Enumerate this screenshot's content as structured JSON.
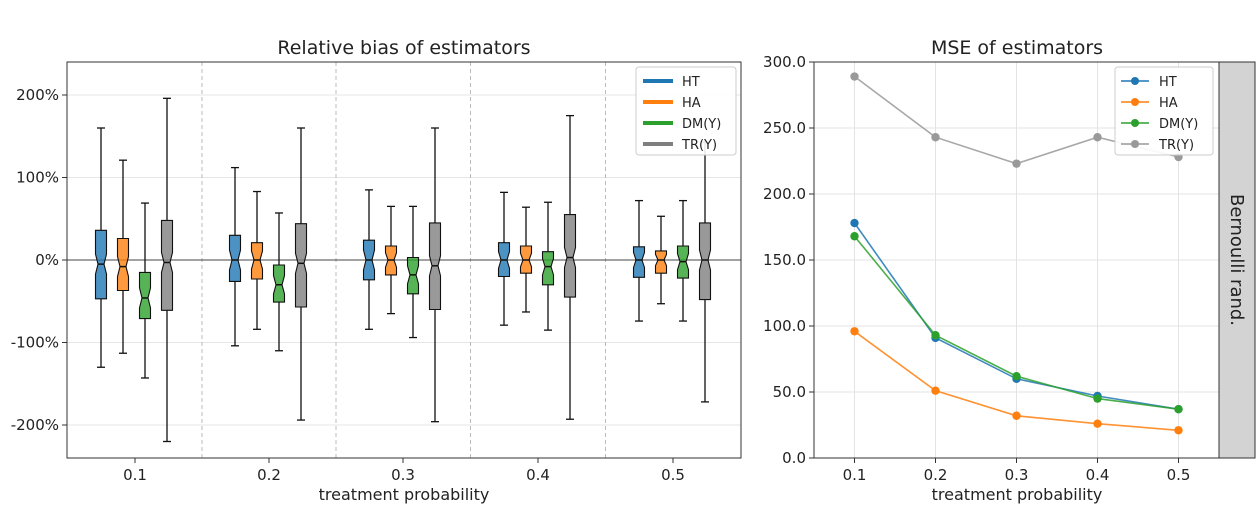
{
  "chart_data": [
    {
      "type": "boxplot",
      "title": "Relative bias of estimators",
      "xlabel": "treatment probability",
      "ylabel": "",
      "categories": [
        "0.1",
        "0.2",
        "0.3",
        "0.4",
        "0.5"
      ],
      "ylim": [
        -240,
        240
      ],
      "yticks": [
        -200,
        -100,
        0,
        100,
        200
      ],
      "ytick_labels": [
        "-200%",
        "-100%",
        "0%",
        "100%",
        "200%"
      ],
      "legend_position": "top-right",
      "reference_line": 0,
      "series": [
        {
          "name": "HT",
          "color": "#1f77b4",
          "boxes": [
            {
              "min": -130,
              "q1": -47,
              "median": -5,
              "q3": 36,
              "max": 160
            },
            {
              "min": -104,
              "q1": -26,
              "median": 0,
              "q3": 30,
              "max": 112
            },
            {
              "min": -84,
              "q1": -24,
              "median": 0,
              "q3": 24,
              "max": 85
            },
            {
              "min": -79,
              "q1": -20,
              "median": 0,
              "q3": 21,
              "max": 82
            },
            {
              "min": -74,
              "q1": -21,
              "median": 0,
              "q3": 16,
              "max": 72
            }
          ]
        },
        {
          "name": "HA",
          "color": "#ff7f0e",
          "boxes": [
            {
              "min": -113,
              "q1": -37,
              "median": -8,
              "q3": 26,
              "max": 121
            },
            {
              "min": -84,
              "q1": -23,
              "median": 0,
              "q3": 21,
              "max": 83
            },
            {
              "min": -65,
              "q1": -18,
              "median": 0,
              "q3": 17,
              "max": 65
            },
            {
              "min": -63,
              "q1": -16,
              "median": 0,
              "q3": 17,
              "max": 64
            },
            {
              "min": -53,
              "q1": -16,
              "median": 0,
              "q3": 11,
              "max": 53
            }
          ]
        },
        {
          "name": "DM(Y)",
          "color": "#2ca02c",
          "boxes": [
            {
              "min": -143,
              "q1": -71,
              "median": -46,
              "q3": -15,
              "max": 69
            },
            {
              "min": -110,
              "q1": -51,
              "median": -30,
              "q3": -6,
              "max": 57
            },
            {
              "min": -94,
              "q1": -41,
              "median": -18,
              "q3": 3,
              "max": 65
            },
            {
              "min": -85,
              "q1": -30,
              "median": -8,
              "q3": 10,
              "max": 70
            },
            {
              "min": -74,
              "q1": -22,
              "median": -2,
              "q3": 17,
              "max": 72
            }
          ]
        },
        {
          "name": "TR(Y)",
          "color": "#7f7f7f",
          "boxes": [
            {
              "min": -220,
              "q1": -61,
              "median": -3,
              "q3": 48,
              "max": 196
            },
            {
              "min": -194,
              "q1": -57,
              "median": -4,
              "q3": 44,
              "max": 160
            },
            {
              "min": -196,
              "q1": -60,
              "median": -7,
              "q3": 45,
              "max": 160
            },
            {
              "min": -193,
              "q1": -45,
              "median": 3,
              "q3": 55,
              "max": 175
            },
            {
              "min": -172,
              "q1": -48,
              "median": 0,
              "q3": 45,
              "max": 143
            }
          ]
        }
      ]
    },
    {
      "type": "line",
      "title": "MSE of estimators",
      "xlabel": "treatment probability",
      "ylabel": "",
      "x": [
        0.1,
        0.2,
        0.3,
        0.4,
        0.5
      ],
      "xtick_labels": [
        "0.1",
        "0.2",
        "0.3",
        "0.4",
        "0.5"
      ],
      "xlim": [
        0.05,
        0.55
      ],
      "ylim": [
        0,
        300
      ],
      "yticks": [
        0,
        50,
        100,
        150,
        200,
        250,
        300
      ],
      "ytick_labels": [
        "0.0",
        "50.0",
        "100.0",
        "150.0",
        "200.0",
        "250.0",
        "300.0"
      ],
      "grid": true,
      "legend_position": "top-right",
      "facet_label": "Bernoulli rand.",
      "series": [
        {
          "name": "HT",
          "color": "#1f77b4",
          "values": [
            178,
            91,
            60,
            47,
            37
          ]
        },
        {
          "name": "HA",
          "color": "#ff7f0e",
          "values": [
            96,
            51,
            32,
            26,
            21
          ]
        },
        {
          "name": "DM(Y)",
          "color": "#2ca02c",
          "values": [
            168,
            93,
            62,
            45,
            37
          ]
        },
        {
          "name": "TR(Y)",
          "color": "#999999",
          "values": [
            289,
            243,
            223,
            243,
            228
          ]
        }
      ]
    }
  ]
}
